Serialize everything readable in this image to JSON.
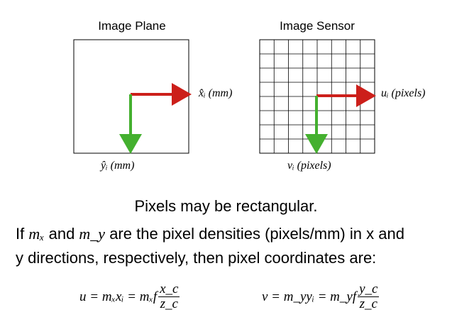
{
  "left_panel": {
    "title": "Image Plane",
    "x_label": "x̂ᵢ (mm)",
    "y_label": "ŷᵢ (mm)"
  },
  "right_panel": {
    "title": "Image Sensor",
    "x_label": "uᵢ (pixels)",
    "y_label": "vᵢ (pixels)",
    "grid": {
      "columns": 8,
      "rows": 8
    }
  },
  "colors": {
    "x_arrow": "#cc1f1a",
    "y_arrow": "#44b02f",
    "frame": "#000000",
    "grid": "#000000"
  },
  "text": {
    "headline": "Pixels may be rectangular.",
    "line1_a": "If ",
    "mx": "mₓ",
    "line1_b": " and ",
    "my": "m_y",
    "line1_c": " are the pixel densities (pixels/mm) in x and",
    "line2": "y directions, respectively, then pixel coordinates are:"
  },
  "formulas": {
    "u": {
      "lhs": "u = mₓxᵢ = mₓf",
      "num": "x_c",
      "den": "z_c"
    },
    "v": {
      "lhs": "v = m_yyᵢ = m_yf",
      "num": "y_c",
      "den": "z_c"
    }
  }
}
